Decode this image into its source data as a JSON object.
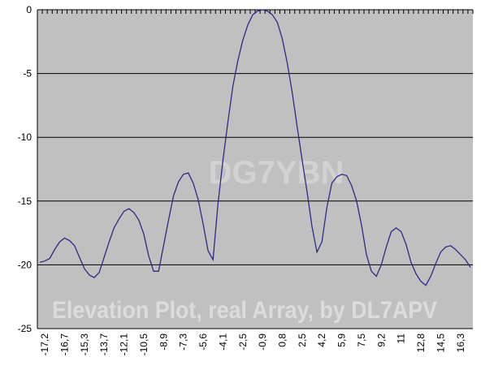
{
  "chart_data": {
    "type": "line",
    "annotations": [
      "DG7YBN",
      "Elevation Plot, real Array, by DL7APV"
    ],
    "categories": [
      null,
      "-17,2",
      null,
      null,
      null,
      "-16,7",
      null,
      null,
      null,
      "-15,3",
      null,
      null,
      null,
      "-13,7",
      null,
      null,
      null,
      "-12,1",
      null,
      null,
      null,
      "-10,5",
      null,
      null,
      null,
      "-8,9",
      null,
      null,
      null,
      "-7,3",
      null,
      null,
      null,
      "-5,6",
      null,
      null,
      null,
      "-4,1",
      null,
      null,
      null,
      "-2,5",
      null,
      null,
      null,
      "-0,9",
      null,
      null,
      null,
      "0,8",
      null,
      null,
      null,
      "2,5",
      null,
      null,
      null,
      "4,2",
      null,
      null,
      null,
      "5,9",
      null,
      null,
      null,
      "7,5",
      null,
      null,
      null,
      "9,2",
      null,
      null,
      null,
      "11",
      null,
      null,
      null,
      "12,8",
      null,
      null,
      null,
      "14,5",
      null,
      null,
      null,
      "16,3",
      null,
      null
    ],
    "values": [
      -19.8,
      -19.7,
      -19.5,
      -18.8,
      -18.2,
      -17.9,
      -18.1,
      -18.5,
      -19.4,
      -20.3,
      -20.8,
      -21.0,
      -20.6,
      -19.4,
      -18.2,
      -17.1,
      -16.4,
      -15.8,
      -15.6,
      -15.9,
      -16.5,
      -17.6,
      -19.3,
      -20.5,
      -20.5,
      -18.5,
      -16.5,
      -14.6,
      -13.5,
      -12.9,
      -12.8,
      -13.6,
      -14.9,
      -16.8,
      -18.9,
      -19.6,
      -15.2,
      -11.8,
      -8.8,
      -6.0,
      -4.0,
      -2.4,
      -1.2,
      -0.4,
      -0.1,
      0,
      -0.1,
      -0.4,
      -1.0,
      -2.3,
      -4.2,
      -6.5,
      -9.2,
      -11.8,
      -14.3,
      -17.0,
      -19.0,
      -18.2,
      -15.5,
      -13.6,
      -13.1,
      -12.9,
      -13.0,
      -13.8,
      -15.0,
      -16.9,
      -19.2,
      -20.5,
      -20.9,
      -20.0,
      -18.6,
      -17.4,
      -17.1,
      -17.4,
      -18.4,
      -19.8,
      -20.7,
      -21.3,
      -21.6,
      -20.9,
      -19.9,
      -19.0,
      -18.6,
      -18.5,
      -18.8,
      -19.2,
      -19.6,
      -20.2
    ],
    "color": "#2b2b86",
    "ylim": [
      -25,
      0
    ],
    "yticks": [
      0,
      -5,
      -10,
      -15,
      -20,
      -25
    ],
    "grid": true
  }
}
